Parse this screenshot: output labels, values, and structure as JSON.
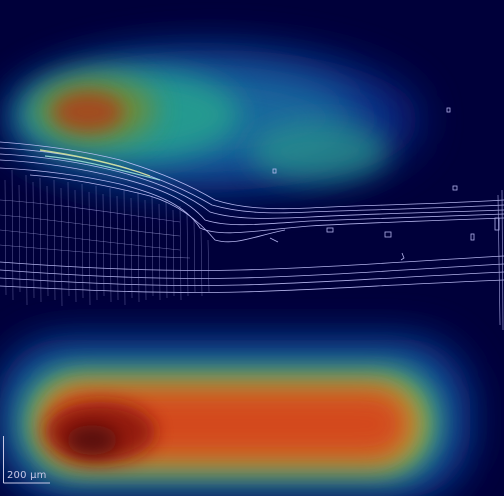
{
  "scale_bar": {
    "label": "200 μm"
  },
  "colors": {
    "background": "#00003a",
    "contour": "#c7c7ff",
    "heatmap_low": "#0a3a8c",
    "heatmap_mid": "#2aa98a",
    "heatmap_high": "#c81e12",
    "heatmap_peak": "#6a0a0a"
  }
}
